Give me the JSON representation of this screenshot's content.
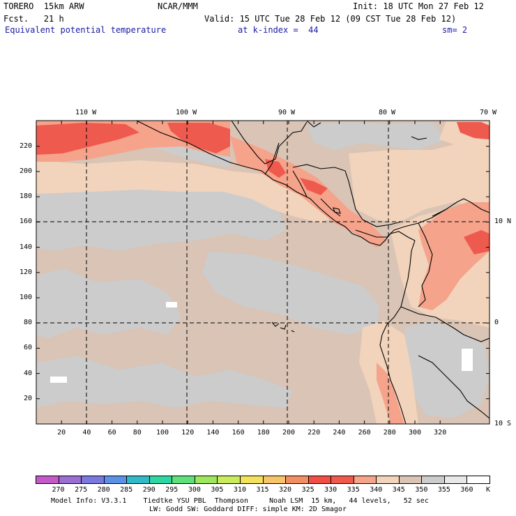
{
  "header": {
    "model": "TORERO  15km ARW",
    "org": "NCAR/MMM",
    "init": "Init: 18 UTC Mon 27 Feb 12",
    "fcst": "Fcst.   21 h",
    "valid": "Valid: 15 UTC Tue 28 Feb 12 (09 CST Tue 28 Feb 12)",
    "field": "Equivalent potential temperature",
    "level": "at k-index =  44",
    "smooth": "sm= 2"
  },
  "map": {
    "top_lon_labels": [
      "110 W",
      "100 W",
      "90 W",
      "80 W",
      "70 W"
    ],
    "right_lat_labels": [
      "10 N",
      "0",
      "10 S"
    ],
    "y_ticks": [
      "20",
      "40",
      "60",
      "80",
      "100",
      "120",
      "140",
      "160",
      "180",
      "200",
      "220"
    ],
    "x_ticks": [
      "20",
      "40",
      "60",
      "80",
      "100",
      "120",
      "140",
      "160",
      "180",
      "200",
      "220",
      "240",
      "260",
      "280",
      "300",
      "320"
    ],
    "colors": {
      "background_field": "#d9c4b5",
      "cool_field": "#cccccc",
      "warm_field": "#f2d3bb",
      "hot_field": "#f5a38b",
      "very_hot_field": "#ef5a4e",
      "coast": "#000000"
    }
  },
  "colorbar": {
    "unit": "K",
    "labels": [
      "270",
      "275",
      "280",
      "285",
      "290",
      "295",
      "300",
      "305",
      "310",
      "315",
      "320",
      "325",
      "330",
      "335",
      "340",
      "345",
      "350",
      "355",
      "360"
    ],
    "colors": [
      "#c45ac8",
      "#9a6fd2",
      "#7a79e0",
      "#5b92e6",
      "#33b8c8",
      "#2fd6a0",
      "#5fe07a",
      "#9fe65f",
      "#cbeb5f",
      "#f3e05c",
      "#f6c46a",
      "#f28e62",
      "#ef4f45",
      "#f05a4c",
      "#f4a58b",
      "#f2d3bb",
      "#d9c4b5",
      "#cccccc",
      "#e8e8e8",
      "#ffffff"
    ]
  },
  "footer": {
    "line1": "Model Info: V3.3.1    Tiedtke YSU PBL  Thompson     Noah LSM  15 km,   44 levels,   52 sec",
    "line2": "LW: Godd SW: Goddard DIFF: simple KM: 2D Smagor"
  }
}
